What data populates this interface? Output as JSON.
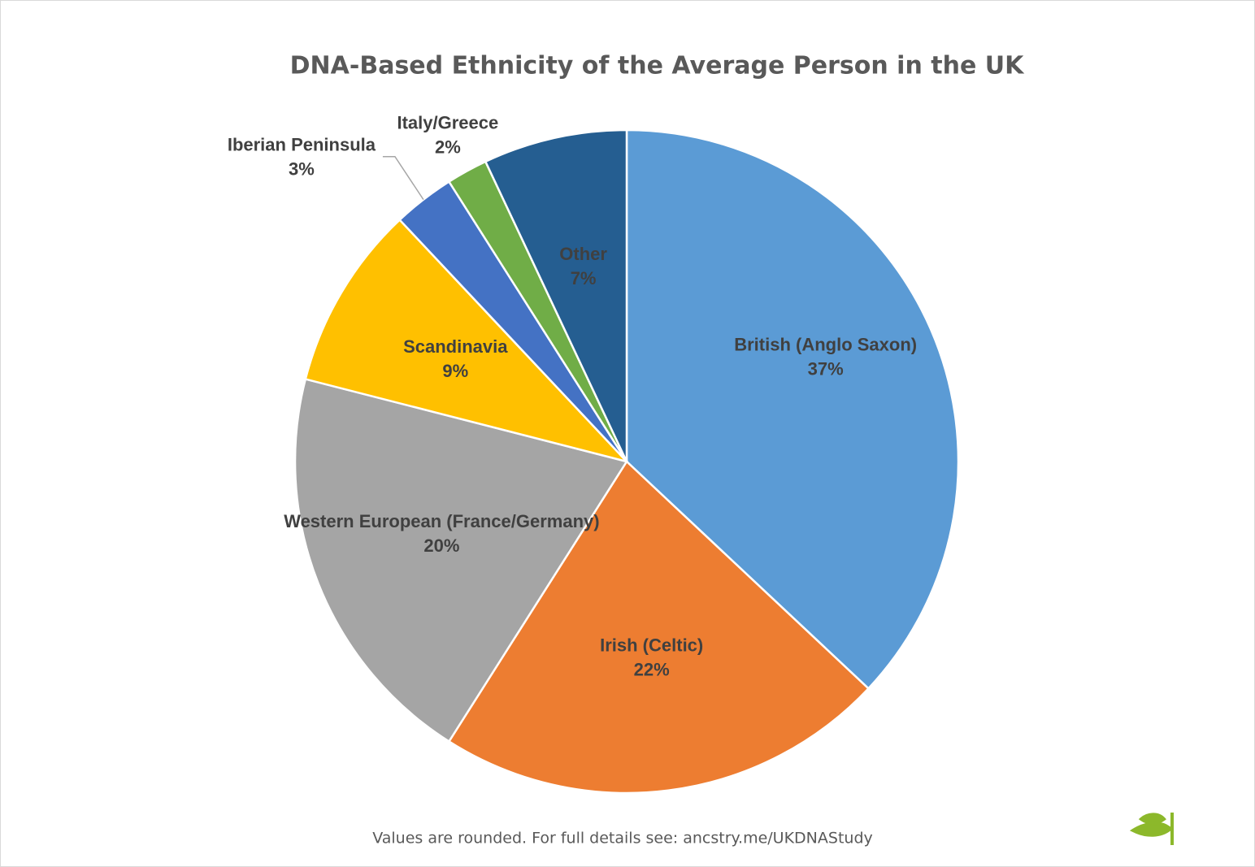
{
  "chart_data": {
    "type": "pie",
    "title": "DNA-Based Ethnicity of the Average Person in the UK",
    "categories": [
      "British (Anglo Saxon)",
      "Irish (Celtic)",
      "Western European (France/Germany)",
      "Scandinavia",
      "Iberian Peninsula",
      "Italy/Greece",
      "Other"
    ],
    "values": [
      37,
      22,
      20,
      9,
      3,
      2,
      7
    ],
    "value_labels": [
      "37%",
      "22%",
      "20%",
      "9%",
      "3%",
      "2%",
      "7%"
    ],
    "colors": [
      "#5b9bd5",
      "#ed7d31",
      "#a5a5a5",
      "#ffc000",
      "#4472c4",
      "#70ad47",
      "#255e91"
    ],
    "note": "Values are rounded.  For full details see: ancstry.me/UKDNAStudy"
  }
}
